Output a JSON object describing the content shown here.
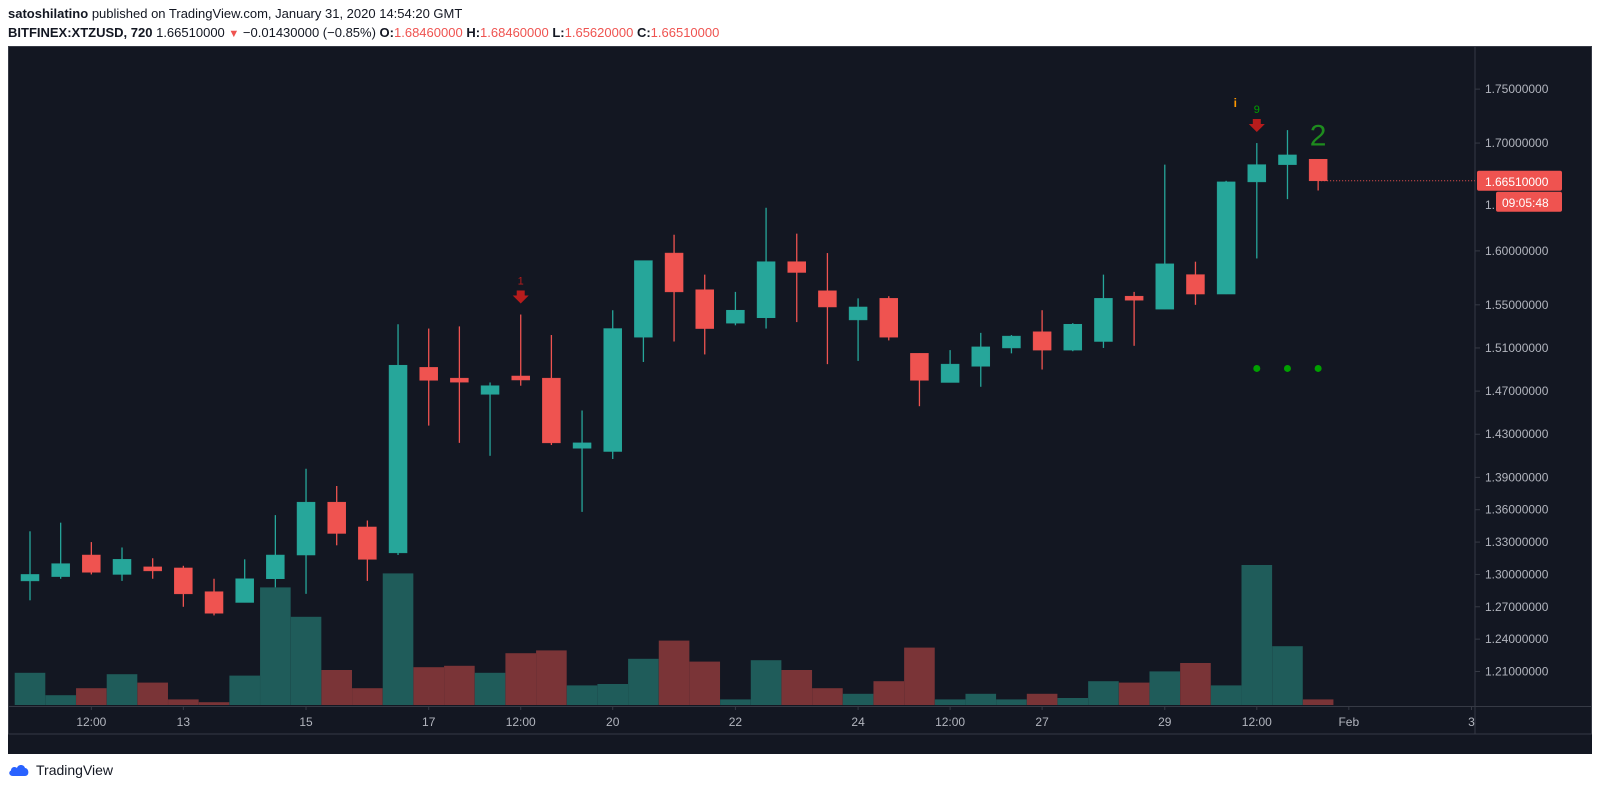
{
  "header": {
    "author": "satoshilatino",
    "published_text": "published on TradingView.com, January 31, 2020 14:54:20 GMT",
    "symbol": "BITFINEX:XTZUSD, 720",
    "last": "1.66510000",
    "change": "−0.01430000 (−0.85%)",
    "o_label": "O:",
    "o_value": "1.68460000",
    "h_label": "H:",
    "h_value": "1.68460000",
    "l_label": "L:",
    "l_value": "1.65620000",
    "c_label": "C:",
    "c_value": "1.66510000"
  },
  "footer": {
    "brand": "TradingView"
  },
  "price_tag": {
    "price": "1.66510000",
    "countdown": "09:05:48"
  },
  "colors": {
    "background": "#131722",
    "up": "#26a69a",
    "down": "#ef5350",
    "vol_up": "#1f5c5a",
    "vol_down": "#7a3437",
    "text": "#b2b5be",
    "border": "#363a45",
    "signal_red": "#b71c1c",
    "signal_green": "#00a000",
    "signal_orange": "#ff9800"
  },
  "chart_data": {
    "type": "candlestick",
    "symbol": "BITFINEX:XTZUSD",
    "interval": "720",
    "ylim": [
      1.178,
      1.79
    ],
    "y_ticks": [
      "1.75000000",
      "1.70000000",
      "1.60000000",
      "1.55000000",
      "1.51000000",
      "1.47000000",
      "1.43000000",
      "1.39000000",
      "1.36000000",
      "1.33000000",
      "1.30000000",
      "1.27000000",
      "1.24000000",
      "1.21000000"
    ],
    "x_ticks": [
      {
        "label": "12:00",
        "bar": 2
      },
      {
        "label": "13",
        "bar": 5
      },
      {
        "label": "15",
        "bar": 9
      },
      {
        "label": "17",
        "bar": 13
      },
      {
        "label": "12:00",
        "bar": 16
      },
      {
        "label": "20",
        "bar": 19
      },
      {
        "label": "22",
        "bar": 23
      },
      {
        "label": "24",
        "bar": 27
      },
      {
        "label": "12:00",
        "bar": 30
      },
      {
        "label": "27",
        "bar": 33
      },
      {
        "label": "29",
        "bar": 37
      },
      {
        "label": "12:00",
        "bar": 40
      },
      {
        "label": "Feb",
        "bar": 43
      },
      {
        "label": "3",
        "bar": 47
      }
    ],
    "candles": [
      {
        "o": 1.294,
        "h": 1.34,
        "l": 1.276,
        "c": 1.3,
        "v": 0.23
      },
      {
        "o": 1.298,
        "h": 1.348,
        "l": 1.296,
        "c": 1.31,
        "v": 0.07
      },
      {
        "o": 1.318,
        "h": 1.33,
        "l": 1.3,
        "c": 1.302,
        "v": 0.12
      },
      {
        "o": 1.3,
        "h": 1.325,
        "l": 1.294,
        "c": 1.314,
        "v": 0.22
      },
      {
        "o": 1.307,
        "h": 1.315,
        "l": 1.296,
        "c": 1.305,
        "v": 0.16
      },
      {
        "o": 1.306,
        "h": 1.308,
        "l": 1.27,
        "c": 1.282,
        "v": 0.04
      },
      {
        "o": 1.284,
        "h": 1.296,
        "l": 1.262,
        "c": 1.264,
        "v": 0.02
      },
      {
        "o": 1.274,
        "h": 1.314,
        "l": 1.274,
        "c": 1.296,
        "v": 0.21
      },
      {
        "o": 1.296,
        "h": 1.355,
        "l": 1.288,
        "c": 1.318,
        "v": 0.84
      },
      {
        "o": 1.318,
        "h": 1.398,
        "l": 1.282,
        "c": 1.367,
        "v": 0.63
      },
      {
        "o": 1.367,
        "h": 1.382,
        "l": 1.327,
        "c": 1.338,
        "v": 0.25
      },
      {
        "o": 1.344,
        "h": 1.35,
        "l": 1.294,
        "c": 1.314,
        "v": 0.12
      },
      {
        "o": 1.32,
        "h": 1.532,
        "l": 1.318,
        "c": 1.494,
        "v": 0.94
      },
      {
        "o": 1.492,
        "h": 1.528,
        "l": 1.438,
        "c": 1.48,
        "v": 0.27
      },
      {
        "o": 1.482,
        "h": 1.53,
        "l": 1.422,
        "c": 1.48,
        "v": 0.28
      },
      {
        "o": 1.467,
        "h": 1.478,
        "l": 1.41,
        "c": 1.475,
        "v": 0.23
      },
      {
        "o": 1.484,
        "h": 1.541,
        "l": 1.475,
        "c": 1.481,
        "v": 0.37
      },
      {
        "o": 1.482,
        "h": 1.522,
        "l": 1.42,
        "c": 1.422,
        "v": 0.39
      },
      {
        "o": 1.417,
        "h": 1.452,
        "l": 1.358,
        "c": 1.422,
        "v": 0.14
      },
      {
        "o": 1.414,
        "h": 1.545,
        "l": 1.407,
        "c": 1.528,
        "v": 0.15
      },
      {
        "o": 1.52,
        "h": 1.59,
        "l": 1.497,
        "c": 1.591,
        "v": 0.33
      },
      {
        "o": 1.598,
        "h": 1.615,
        "l": 1.516,
        "c": 1.562,
        "v": 0.46
      },
      {
        "o": 1.564,
        "h": 1.578,
        "l": 1.504,
        "c": 1.528,
        "v": 0.31
      },
      {
        "o": 1.533,
        "h": 1.562,
        "l": 1.531,
        "c": 1.545,
        "v": 0.04
      },
      {
        "o": 1.538,
        "h": 1.64,
        "l": 1.528,
        "c": 1.59,
        "v": 0.32
      },
      {
        "o": 1.59,
        "h": 1.616,
        "l": 1.534,
        "c": 1.58,
        "v": 0.25
      },
      {
        "o": 1.563,
        "h": 1.598,
        "l": 1.495,
        "c": 1.548,
        "v": 0.12
      },
      {
        "o": 1.536,
        "h": 1.556,
        "l": 1.498,
        "c": 1.548,
        "v": 0.08
      },
      {
        "o": 1.556,
        "h": 1.558,
        "l": 1.517,
        "c": 1.52,
        "v": 0.17
      },
      {
        "o": 1.505,
        "h": 1.505,
        "l": 1.456,
        "c": 1.48,
        "v": 0.41
      },
      {
        "o": 1.478,
        "h": 1.508,
        "l": 1.478,
        "c": 1.495,
        "v": 0.04
      },
      {
        "o": 1.493,
        "h": 1.524,
        "l": 1.474,
        "c": 1.511,
        "v": 0.08
      },
      {
        "o": 1.51,
        "h": 1.522,
        "l": 1.505,
        "c": 1.521,
        "v": 0.04
      },
      {
        "o": 1.525,
        "h": 1.545,
        "l": 1.49,
        "c": 1.508,
        "v": 0.08
      },
      {
        "o": 1.508,
        "h": 1.533,
        "l": 1.507,
        "c": 1.532,
        "v": 0.05
      },
      {
        "o": 1.516,
        "h": 1.578,
        "l": 1.51,
        "c": 1.556,
        "v": 0.17
      },
      {
        "o": 1.558,
        "h": 1.562,
        "l": 1.512,
        "c": 1.555,
        "v": 0.16
      },
      {
        "o": 1.546,
        "h": 1.68,
        "l": 1.546,
        "c": 1.588,
        "v": 0.24
      },
      {
        "o": 1.578,
        "h": 1.59,
        "l": 1.55,
        "c": 1.56,
        "v": 0.3
      },
      {
        "o": 1.56,
        "h": 1.665,
        "l": 1.56,
        "c": 1.664,
        "v": 0.14
      },
      {
        "o": 1.664,
        "h": 1.7,
        "l": 1.593,
        "c": 1.68,
        "v": 1.0
      },
      {
        "o": 1.68,
        "h": 1.712,
        "l": 1.648,
        "c": 1.689,
        "v": 0.42
      },
      {
        "o": 1.685,
        "h": 1.685,
        "l": 1.656,
        "c": 1.665,
        "v": 0.04
      }
    ],
    "annotations": [
      {
        "bar": 16,
        "type": "sell_arrow",
        "label": "1"
      },
      {
        "bar": 40,
        "type": "sell_arrow",
        "label": "9"
      },
      {
        "bar": 39.3,
        "type": "text",
        "label": "i"
      },
      {
        "bar": 42,
        "type": "text",
        "label": "2",
        "price": 1.71
      },
      {
        "bar": 40,
        "type": "dot",
        "price": 1.491
      },
      {
        "bar": 41,
        "type": "dot",
        "price": 1.491
      },
      {
        "bar": 42,
        "type": "dot",
        "price": 1.491
      }
    ]
  }
}
